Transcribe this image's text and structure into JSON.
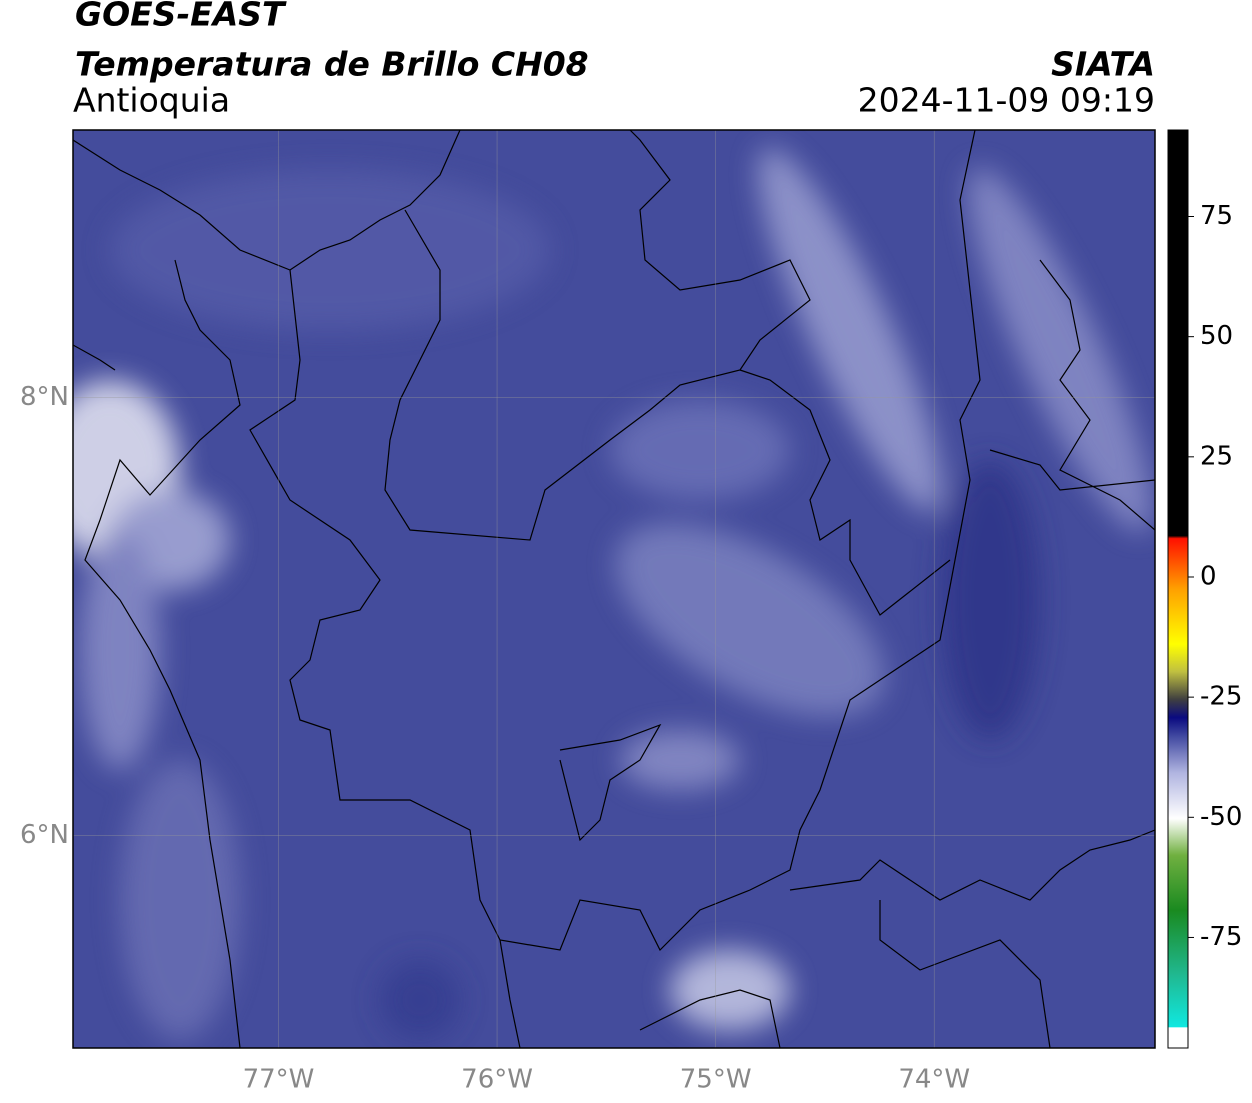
{
  "header": {
    "title": "GOES-EAST",
    "subtitle": "Temperatura de Brillo CH08",
    "region": "Antioquia",
    "source": "SIATA",
    "datetime": "2024-11-09 09:19"
  },
  "map": {
    "xlim": [
      -77.94,
      -72.99
    ],
    "ylim": [
      5.03,
      9.22
    ],
    "xticks": [
      {
        "value": -77,
        "label": "77°W"
      },
      {
        "value": -76,
        "label": "76°W"
      },
      {
        "value": -75,
        "label": "75°W"
      },
      {
        "value": -74,
        "label": "74°W"
      }
    ],
    "yticks": [
      {
        "value": 6,
        "label": "6°N"
      },
      {
        "value": 8,
        "label": "8°N"
      }
    ]
  },
  "colorbar": {
    "ylim": [
      -98,
      93
    ],
    "yticks": [
      -75,
      -50,
      -25,
      0,
      25,
      50,
      75
    ]
  }
}
